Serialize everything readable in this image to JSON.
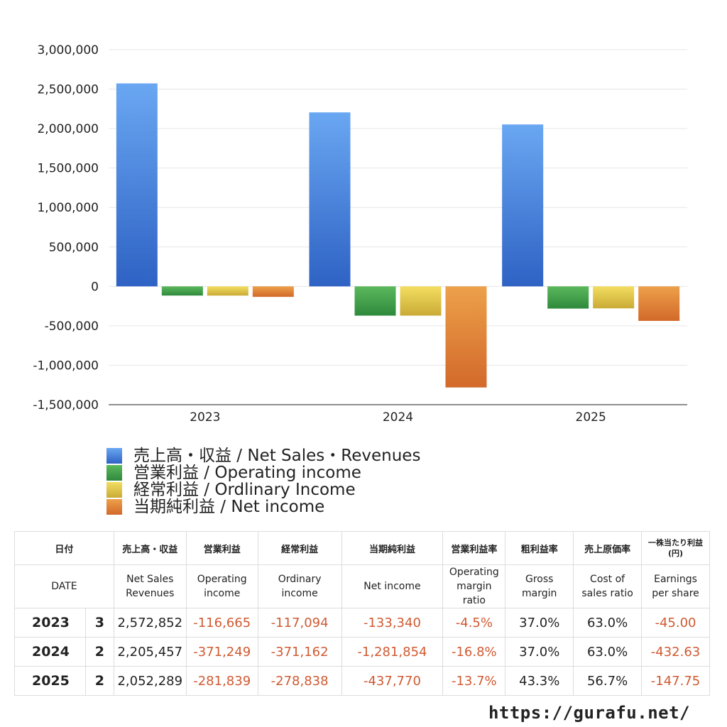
{
  "chart_data": {
    "type": "bar",
    "categories": [
      "2023",
      "2024",
      "2025"
    ],
    "series": [
      {
        "name": "売上高・収益 / Net Sales・Revenues",
        "values": [
          2572852,
          2205457,
          2052289
        ],
        "color_top": "#6aa7f2",
        "color_bottom": "#2e62c4"
      },
      {
        "name": "営業利益 / Operating income",
        "values": [
          -116665,
          -371249,
          -281839
        ],
        "color_top": "#5cb85c",
        "color_bottom": "#2e8a3c"
      },
      {
        "name": "経常利益 / Ordlinary Income",
        "values": [
          -117094,
          -371162,
          -278838
        ],
        "color_top": "#f3de60",
        "color_bottom": "#c9aa36"
      },
      {
        "name": "当期純利益 / Net income",
        "values": [
          -133340,
          -1281854,
          -437770
        ],
        "color_top": "#eda04a",
        "color_bottom": "#d2692a"
      }
    ],
    "yticks": [
      "3,000,000",
      "2,500,000",
      "2,000,000",
      "1,500,000",
      "1,000,000",
      "500,000",
      "0",
      "-500,000",
      "-1,000,000",
      "-1,500,000"
    ],
    "ylim": [
      -1500000,
      3000000
    ],
    "grid": true,
    "legend_position": "bottom-left"
  },
  "table": {
    "headers_jp": [
      "日付",
      "売上高・収益",
      "営業利益",
      "経常利益",
      "当期純利益",
      "営業利益率",
      "粗利益率",
      "売上原価率",
      "一株当たり利益\n(円)"
    ],
    "headers_en": [
      "DATE",
      "Net Sales\nRevenues",
      "Operating\nincome",
      "Ordinary\nincome",
      "Net income",
      "Operating\nmargin\nratio",
      "Gross\nmargin",
      "Cost of\nsales ratio",
      "Earnings\nper share"
    ],
    "rows": [
      {
        "year": "2023",
        "months": "3",
        "sales": "2,572,852",
        "operating": "-116,665",
        "ordinary": "-117,094",
        "net": "-133,340",
        "op_margin": "-4.5%",
        "gross": "37.0%",
        "cost": "63.0%",
        "eps": "-45.00"
      },
      {
        "year": "2024",
        "months": "2",
        "sales": "2,205,457",
        "operating": "-371,249",
        "ordinary": "-371,162",
        "net": "-1,281,854",
        "op_margin": "-16.8%",
        "gross": "37.0%",
        "cost": "63.0%",
        "eps": "-432.63"
      },
      {
        "year": "2025",
        "months": "2",
        "sales": "2,052,289",
        "operating": "-281,839",
        "ordinary": "-278,838",
        "net": "-437,770",
        "op_margin": "-13.7%",
        "gross": "43.3%",
        "cost": "56.7%",
        "eps": "-147.75"
      }
    ]
  },
  "site": "https://gurafu.net/"
}
